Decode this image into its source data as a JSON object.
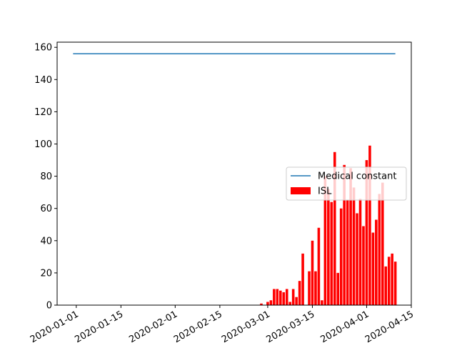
{
  "chart_data": {
    "type": "bar_line",
    "series": [
      {
        "name": "Medical constant",
        "type": "line",
        "color": "#1f77b4",
        "x": [
          "2019-12-31",
          "2020-04-10"
        ],
        "values": [
          156,
          156
        ]
      },
      {
        "name": "ISL",
        "type": "bar",
        "color": "#ff0000",
        "x": [
          "2020-02-28",
          "2020-02-29",
          "2020-03-01",
          "2020-03-02",
          "2020-03-03",
          "2020-03-04",
          "2020-03-05",
          "2020-03-06",
          "2020-03-07",
          "2020-03-08",
          "2020-03-09",
          "2020-03-10",
          "2020-03-11",
          "2020-03-12",
          "2020-03-13",
          "2020-03-14",
          "2020-03-15",
          "2020-03-16",
          "2020-03-17",
          "2020-03-18",
          "2020-03-19",
          "2020-03-20",
          "2020-03-21",
          "2020-03-22",
          "2020-03-23",
          "2020-03-24",
          "2020-03-25",
          "2020-03-26",
          "2020-03-27",
          "2020-03-28",
          "2020-03-29",
          "2020-03-30",
          "2020-03-31",
          "2020-04-01",
          "2020-04-02",
          "2020-04-03",
          "2020-04-04",
          "2020-04-05",
          "2020-04-06",
          "2020-04-07",
          "2020-04-08",
          "2020-04-09",
          "2020-04-10"
        ],
        "values": [
          1,
          0,
          2,
          3,
          10,
          10,
          9,
          8,
          10,
          2,
          10,
          5,
          15,
          32,
          0,
          21,
          40,
          21,
          48,
          3,
          80,
          72,
          64,
          95,
          20,
          60,
          87,
          65,
          85,
          73,
          57,
          66,
          49,
          90,
          99,
          45,
          53,
          69,
          76,
          24,
          30,
          32,
          27
        ]
      }
    ],
    "xlim": [
      "2019-12-26",
      "2020-04-15"
    ],
    "xticks": [
      "2020-01-01",
      "2020-01-15",
      "2020-02-01",
      "2020-02-15",
      "2020-03-01",
      "2020-03-15",
      "2020-04-01",
      "2020-04-15"
    ],
    "ylim": [
      0,
      163.2
    ],
    "yticks": [
      0,
      20,
      40,
      60,
      80,
      100,
      120,
      140,
      160
    ],
    "legend": "center right"
  }
}
